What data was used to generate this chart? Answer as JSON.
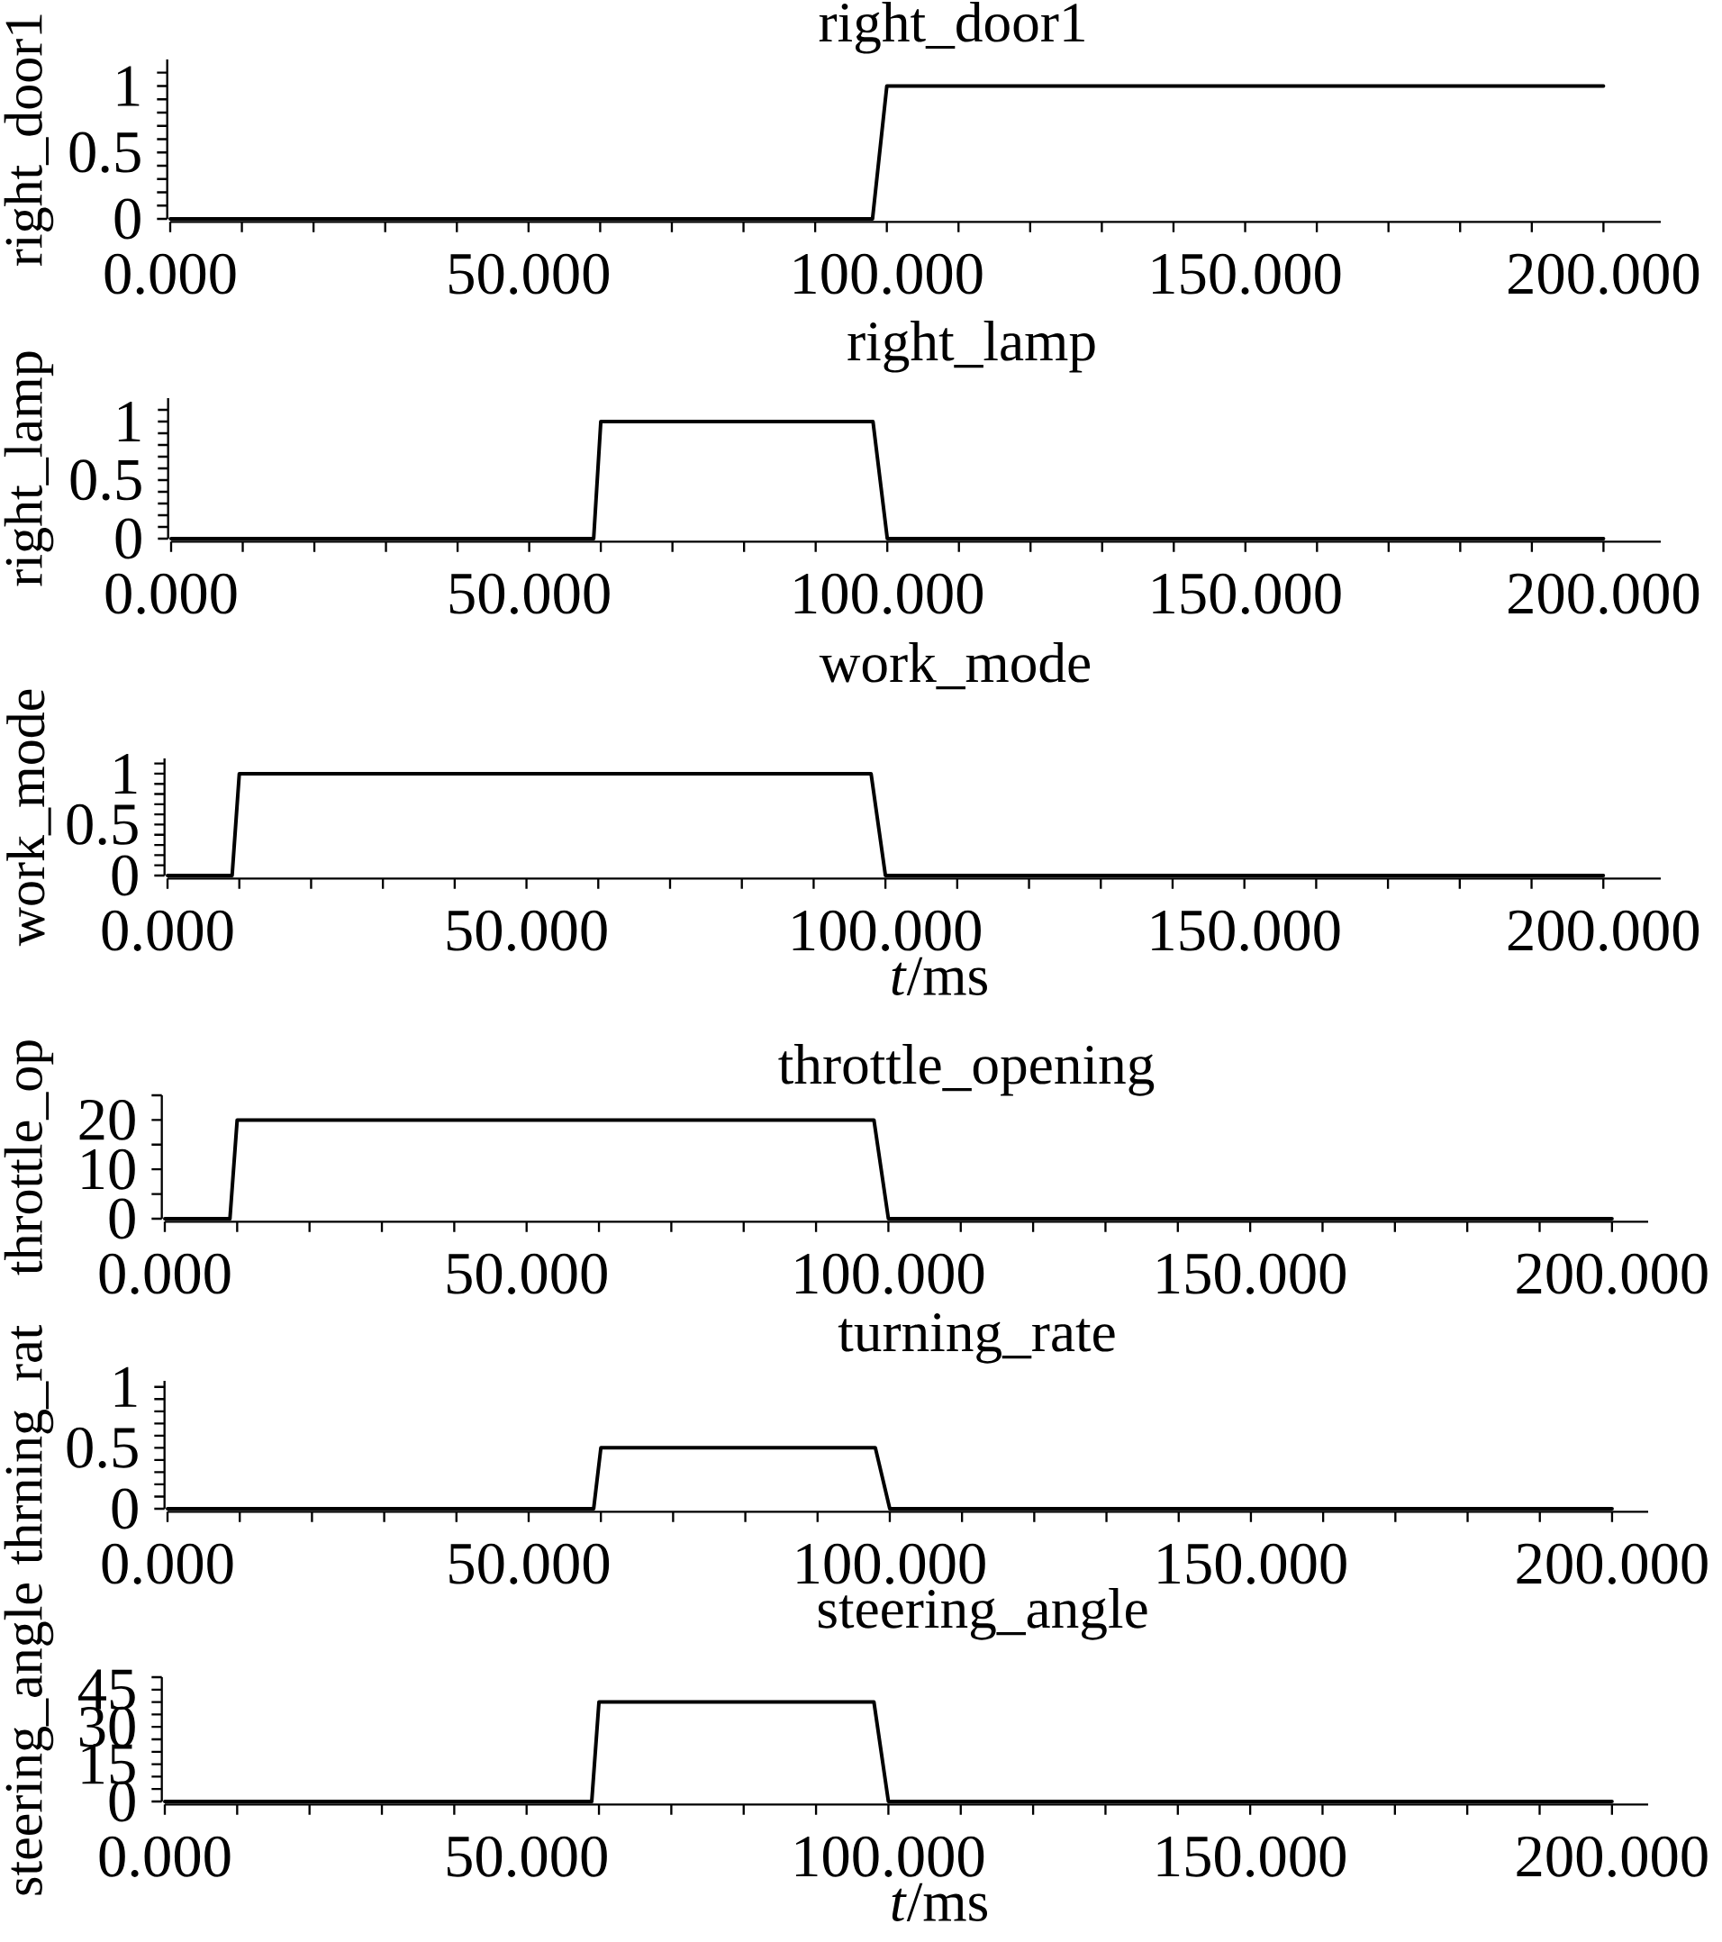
{
  "chart_data": [
    {
      "type": "line",
      "title": "right_door1",
      "ylabel": "right_door1",
      "color": "#000000",
      "x": [
        0,
        98,
        100,
        200
      ],
      "values": [
        0,
        0,
        1,
        1
      ],
      "xlim": [
        0,
        208
      ],
      "ylim": [
        0,
        1.2
      ],
      "xticks": [
        {
          "value": 0,
          "label": "0.000"
        },
        {
          "value": 10,
          "label": null
        },
        {
          "value": 20,
          "label": null
        },
        {
          "value": 30,
          "label": null
        },
        {
          "value": 40,
          "label": null
        },
        {
          "value": 50,
          "label": "50.000"
        },
        {
          "value": 60,
          "label": null
        },
        {
          "value": 70,
          "label": null
        },
        {
          "value": 80,
          "label": null
        },
        {
          "value": 90,
          "label": null
        },
        {
          "value": 100,
          "label": "100.000"
        },
        {
          "value": 110,
          "label": null
        },
        {
          "value": 120,
          "label": null
        },
        {
          "value": 130,
          "label": null
        },
        {
          "value": 140,
          "label": null
        },
        {
          "value": 150,
          "label": "150.000"
        },
        {
          "value": 160,
          "label": null
        },
        {
          "value": 170,
          "label": null
        },
        {
          "value": 180,
          "label": null
        },
        {
          "value": 190,
          "label": null
        },
        {
          "value": 200,
          "label": "200.000"
        }
      ],
      "yticks": [
        0,
        {
          "value": 0.1,
          "label": null
        },
        {
          "value": 0.2,
          "label": null
        },
        {
          "value": 0.3,
          "label": null
        },
        {
          "value": 0.4,
          "label": null
        },
        0.5,
        {
          "value": 0.6,
          "label": null
        },
        {
          "value": 0.7,
          "label": null
        },
        {
          "value": 0.8,
          "label": null
        },
        {
          "value": 0.9,
          "label": null
        },
        1,
        {
          "value": 1.1,
          "label": null
        }
      ]
    },
    {
      "type": "line",
      "title": "right_lamp",
      "ylabel": "right_lamp",
      "color": "#000000",
      "x": [
        0,
        59,
        60,
        98,
        100,
        200
      ],
      "values": [
        0,
        0,
        1,
        1,
        0,
        0
      ],
      "xlim": [
        0,
        208
      ],
      "ylim": [
        0,
        1.2
      ],
      "xticks": [
        {
          "value": 0,
          "label": "0.000"
        },
        {
          "value": 10,
          "label": null
        },
        {
          "value": 20,
          "label": null
        },
        {
          "value": 30,
          "label": null
        },
        {
          "value": 40,
          "label": null
        },
        {
          "value": 50,
          "label": "50.000"
        },
        {
          "value": 60,
          "label": null
        },
        {
          "value": 70,
          "label": null
        },
        {
          "value": 80,
          "label": null
        },
        {
          "value": 90,
          "label": null
        },
        {
          "value": 100,
          "label": "100.000"
        },
        {
          "value": 110,
          "label": null
        },
        {
          "value": 120,
          "label": null
        },
        {
          "value": 130,
          "label": null
        },
        {
          "value": 140,
          "label": null
        },
        {
          "value": 150,
          "label": "150.000"
        },
        {
          "value": 160,
          "label": null
        },
        {
          "value": 170,
          "label": null
        },
        {
          "value": 180,
          "label": null
        },
        {
          "value": 190,
          "label": null
        },
        {
          "value": 200,
          "label": "200.000"
        }
      ],
      "yticks": [
        0,
        {
          "value": 0.1,
          "label": null
        },
        {
          "value": 0.2,
          "label": null
        },
        {
          "value": 0.3,
          "label": null
        },
        {
          "value": 0.4,
          "label": null
        },
        0.5,
        {
          "value": 0.6,
          "label": null
        },
        {
          "value": 0.7,
          "label": null
        },
        {
          "value": 0.8,
          "label": null
        },
        {
          "value": 0.9,
          "label": null
        },
        1,
        {
          "value": 1.1,
          "label": null
        }
      ]
    },
    {
      "type": "line",
      "title": "work_mode",
      "ylabel": "work_mode",
      "xlabel": "*t*/ms",
      "color": "#000000",
      "x": [
        0,
        9,
        10,
        98,
        100,
        200
      ],
      "values": [
        0,
        0,
        1,
        1,
        0,
        0
      ],
      "xlim": [
        0,
        208
      ],
      "ylim": [
        0,
        1.15
      ],
      "xticks": [
        {
          "value": 0,
          "label": "0.000"
        },
        {
          "value": 10,
          "label": null
        },
        {
          "value": 20,
          "label": null
        },
        {
          "value": 30,
          "label": null
        },
        {
          "value": 40,
          "label": null
        },
        {
          "value": 50,
          "label": "50.000"
        },
        {
          "value": 60,
          "label": null
        },
        {
          "value": 70,
          "label": null
        },
        {
          "value": 80,
          "label": null
        },
        {
          "value": 90,
          "label": null
        },
        {
          "value": 100,
          "label": "100.000"
        },
        {
          "value": 110,
          "label": null
        },
        {
          "value": 120,
          "label": null
        },
        {
          "value": 130,
          "label": null
        },
        {
          "value": 140,
          "label": null
        },
        {
          "value": 150,
          "label": "150.000"
        },
        {
          "value": 160,
          "label": null
        },
        {
          "value": 170,
          "label": null
        },
        {
          "value": 180,
          "label": null
        },
        {
          "value": 190,
          "label": null
        },
        {
          "value": 200,
          "label": "200.000"
        }
      ],
      "yticks": [
        0,
        {
          "value": 0.1,
          "label": null
        },
        {
          "value": 0.2,
          "label": null
        },
        {
          "value": 0.3,
          "label": null
        },
        {
          "value": 0.4,
          "label": null
        },
        0.5,
        {
          "value": 0.6,
          "label": null
        },
        {
          "value": 0.7,
          "label": null
        },
        {
          "value": 0.8,
          "label": null
        },
        {
          "value": 0.9,
          "label": null
        },
        1,
        {
          "value": 1.1,
          "label": null
        }
      ]
    },
    {
      "type": "line",
      "title": "throttle_opening",
      "ylabel": "throttle_op",
      "color": "#000000",
      "x": [
        0,
        9,
        10,
        98,
        100,
        200
      ],
      "values": [
        0,
        0,
        20,
        20,
        0,
        0
      ],
      "xlim": [
        0,
        205
      ],
      "ylim": [
        0,
        25
      ],
      "xticks": [
        {
          "value": 0,
          "label": "0.000"
        },
        {
          "value": 10,
          "label": null
        },
        {
          "value": 20,
          "label": null
        },
        {
          "value": 30,
          "label": null
        },
        {
          "value": 40,
          "label": null
        },
        {
          "value": 50,
          "label": "50.000"
        },
        {
          "value": 60,
          "label": null
        },
        {
          "value": 70,
          "label": null
        },
        {
          "value": 80,
          "label": null
        },
        {
          "value": 90,
          "label": null
        },
        {
          "value": 100,
          "label": "100.000"
        },
        {
          "value": 110,
          "label": null
        },
        {
          "value": 120,
          "label": null
        },
        {
          "value": 130,
          "label": null
        },
        {
          "value": 140,
          "label": null
        },
        {
          "value": 150,
          "label": "150.000"
        },
        {
          "value": 160,
          "label": null
        },
        {
          "value": 170,
          "label": null
        },
        {
          "value": 180,
          "label": null
        },
        {
          "value": 190,
          "label": null
        },
        {
          "value": 200,
          "label": "200.000"
        }
      ],
      "yticks": [
        0,
        {
          "value": 5,
          "label": null
        },
        10,
        {
          "value": 15,
          "label": null
        },
        20,
        {
          "value": 25,
          "label": null
        }
      ]
    },
    {
      "type": "line",
      "title": "turning_rate",
      "ylabel": "thrning_rat",
      "color": "#000000",
      "x": [
        0,
        59,
        60,
        98,
        100,
        200
      ],
      "values": [
        0,
        0,
        0.5,
        0.5,
        0,
        0
      ],
      "xlim": [
        0,
        205
      ],
      "ylim": [
        0,
        1.05
      ],
      "xticks": [
        {
          "value": 0,
          "label": "0.000"
        },
        {
          "value": 10,
          "label": null
        },
        {
          "value": 20,
          "label": null
        },
        {
          "value": 30,
          "label": null
        },
        {
          "value": 40,
          "label": null
        },
        {
          "value": 50,
          "label": "50.000"
        },
        {
          "value": 60,
          "label": null
        },
        {
          "value": 70,
          "label": null
        },
        {
          "value": 80,
          "label": null
        },
        {
          "value": 90,
          "label": null
        },
        {
          "value": 100,
          "label": "100.000"
        },
        {
          "value": 110,
          "label": null
        },
        {
          "value": 120,
          "label": null
        },
        {
          "value": 130,
          "label": null
        },
        {
          "value": 140,
          "label": null
        },
        {
          "value": 150,
          "label": "150.000"
        },
        {
          "value": 160,
          "label": null
        },
        {
          "value": 170,
          "label": null
        },
        {
          "value": 180,
          "label": null
        },
        {
          "value": 190,
          "label": null
        },
        {
          "value": 200,
          "label": "200.000"
        }
      ],
      "yticks": [
        0,
        {
          "value": 0.1,
          "label": null
        },
        {
          "value": 0.2,
          "label": null
        },
        {
          "value": 0.3,
          "label": null
        },
        {
          "value": 0.4,
          "label": null
        },
        0.5,
        {
          "value": 0.6,
          "label": null
        },
        {
          "value": 0.7,
          "label": null
        },
        {
          "value": 0.8,
          "label": null
        },
        {
          "value": 0.9,
          "label": null
        },
        1
      ]
    },
    {
      "type": "line",
      "title": "steering_angle",
      "ylabel": "steering_angle",
      "xlabel": "*t*/ms",
      "color": "#000000",
      "x": [
        0,
        59,
        60,
        98,
        100,
        200
      ],
      "values": [
        0,
        0,
        40,
        40,
        0,
        0
      ],
      "xlim": [
        0,
        205
      ],
      "ylim": [
        0,
        50
      ],
      "xticks": [
        {
          "value": 0,
          "label": "0.000"
        },
        {
          "value": 10,
          "label": null
        },
        {
          "value": 20,
          "label": null
        },
        {
          "value": 30,
          "label": null
        },
        {
          "value": 40,
          "label": null
        },
        {
          "value": 50,
          "label": "50.000"
        },
        {
          "value": 60,
          "label": null
        },
        {
          "value": 70,
          "label": null
        },
        {
          "value": 80,
          "label": null
        },
        {
          "value": 90,
          "label": null
        },
        {
          "value": 100,
          "label": "100.000"
        },
        {
          "value": 110,
          "label": null
        },
        {
          "value": 120,
          "label": null
        },
        {
          "value": 130,
          "label": null
        },
        {
          "value": 140,
          "label": null
        },
        {
          "value": 150,
          "label": "150.000"
        },
        {
          "value": 160,
          "label": null
        },
        {
          "value": 170,
          "label": null
        },
        {
          "value": 180,
          "label": null
        },
        {
          "value": 190,
          "label": null
        },
        {
          "value": 200,
          "label": "200.000"
        }
      ],
      "yticks": [
        0,
        {
          "value": 5,
          "label": null
        },
        {
          "value": 10,
          "label": null
        },
        15,
        {
          "value": 20,
          "label": null
        },
        {
          "value": 25,
          "label": null
        },
        30,
        {
          "value": 35,
          "label": null
        },
        {
          "value": 40,
          "label": null
        },
        45,
        {
          "value": 50,
          "label": null
        }
      ]
    }
  ]
}
